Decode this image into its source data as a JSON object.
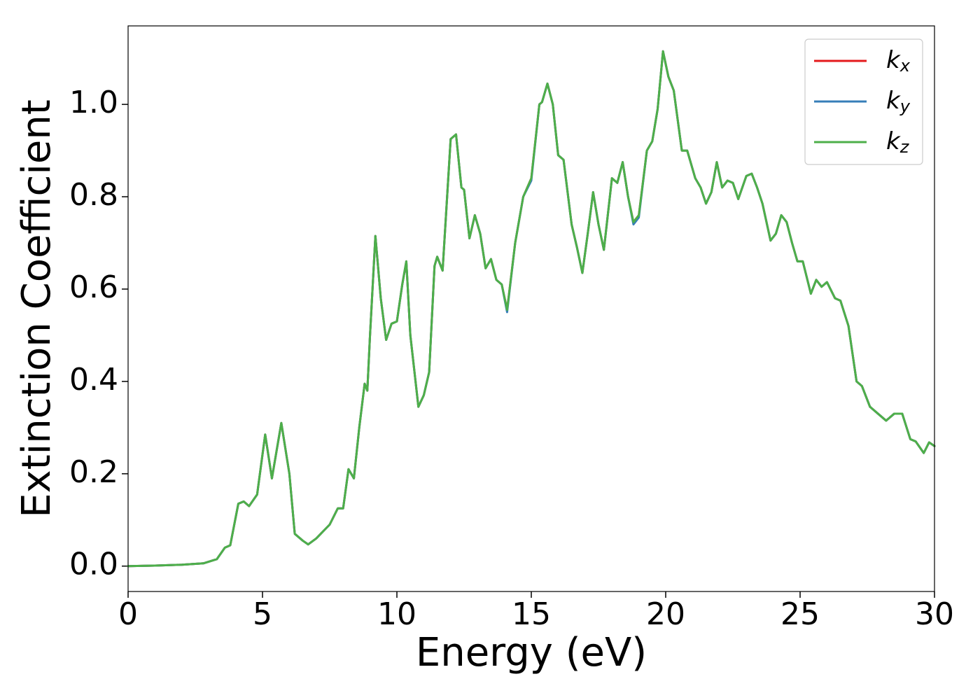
{
  "chart_data": {
    "type": "line",
    "xlabel": "Energy (eV)",
    "ylabel": "Extinction Coefficient",
    "x": [
      0,
      1,
      2,
      2.8,
      3.3,
      3.6,
      3.8,
      4.1,
      4.3,
      4.5,
      4.8,
      5.1,
      5.35,
      5.7,
      6.0,
      6.2,
      6.5,
      6.7,
      7.0,
      7.5,
      7.8,
      8.0,
      8.2,
      8.4,
      8.6,
      8.8,
      8.9,
      9.0,
      9.2,
      9.4,
      9.6,
      9.8,
      10.0,
      10.2,
      10.35,
      10.5,
      10.8,
      11.0,
      11.2,
      11.4,
      11.5,
      11.7,
      12.0,
      12.2,
      12.4,
      12.5,
      12.7,
      12.9,
      13.1,
      13.3,
      13.5,
      13.7,
      13.9,
      14.1,
      14.4,
      14.7,
      15.0,
      15.3,
      15.4,
      15.6,
      15.8,
      16.0,
      16.2,
      16.5,
      16.7,
      16.9,
      17.1,
      17.3,
      17.5,
      17.7,
      18.0,
      18.2,
      18.4,
      18.6,
      18.8,
      19.0,
      19.3,
      19.5,
      19.7,
      19.9,
      20.1,
      20.3,
      20.6,
      20.8,
      21.1,
      21.3,
      21.5,
      21.7,
      21.9,
      22.1,
      22.3,
      22.5,
      22.7,
      23.0,
      23.2,
      23.4,
      23.6,
      23.9,
      24.1,
      24.3,
      24.5,
      24.7,
      24.9,
      25.1,
      25.4,
      25.6,
      25.8,
      26.0,
      26.3,
      26.5,
      26.8,
      27.1,
      27.3,
      27.6,
      27.9,
      28.2,
      28.5,
      28.8,
      29.1,
      29.3,
      29.6,
      29.8,
      30.0
    ],
    "series": [
      {
        "name": "kx",
        "color": "#e41a1c",
        "values": [
          0,
          0.001,
          0.003,
          0.006,
          0.015,
          0.04,
          0.045,
          0.135,
          0.14,
          0.13,
          0.155,
          0.285,
          0.19,
          0.31,
          0.2,
          0.07,
          0.055,
          0.047,
          0.06,
          0.09,
          0.125,
          0.125,
          0.21,
          0.19,
          0.3,
          0.395,
          0.38,
          0.5,
          0.715,
          0.58,
          0.49,
          0.525,
          0.53,
          0.61,
          0.66,
          0.5,
          0.345,
          0.37,
          0.42,
          0.65,
          0.67,
          0.64,
          0.925,
          0.935,
          0.82,
          0.815,
          0.71,
          0.76,
          0.72,
          0.645,
          0.665,
          0.62,
          0.61,
          0.555,
          0.7,
          0.8,
          0.84,
          1.0,
          1.005,
          1.045,
          1.0,
          0.89,
          0.88,
          0.74,
          0.69,
          0.635,
          0.72,
          0.81,
          0.74,
          0.685,
          0.84,
          0.83,
          0.875,
          0.8,
          0.745,
          0.76,
          0.9,
          0.92,
          0.99,
          1.115,
          1.06,
          1.03,
          0.9,
          0.9,
          0.84,
          0.82,
          0.785,
          0.81,
          0.875,
          0.82,
          0.835,
          0.83,
          0.795,
          0.845,
          0.85,
          0.82,
          0.785,
          0.705,
          0.72,
          0.76,
          0.745,
          0.7,
          0.66,
          0.66,
          0.59,
          0.62,
          0.605,
          0.615,
          0.58,
          0.575,
          0.52,
          0.4,
          0.39,
          0.345,
          0.33,
          0.315,
          0.33,
          0.33,
          0.275,
          0.27,
          0.245,
          0.268,
          0.26
        ]
      },
      {
        "name": "ky",
        "color": "#377eb8",
        "values": [
          0,
          0.001,
          0.003,
          0.006,
          0.015,
          0.04,
          0.045,
          0.135,
          0.14,
          0.13,
          0.155,
          0.285,
          0.19,
          0.31,
          0.2,
          0.07,
          0.055,
          0.047,
          0.06,
          0.09,
          0.125,
          0.125,
          0.21,
          0.19,
          0.3,
          0.395,
          0.38,
          0.5,
          0.715,
          0.58,
          0.49,
          0.525,
          0.53,
          0.61,
          0.66,
          0.5,
          0.345,
          0.37,
          0.42,
          0.65,
          0.67,
          0.64,
          0.925,
          0.935,
          0.82,
          0.815,
          0.71,
          0.76,
          0.72,
          0.645,
          0.665,
          0.62,
          0.61,
          0.55,
          0.7,
          0.8,
          0.835,
          1.0,
          1.005,
          1.045,
          1.0,
          0.89,
          0.88,
          0.74,
          0.69,
          0.635,
          0.72,
          0.81,
          0.74,
          0.685,
          0.84,
          0.83,
          0.875,
          0.8,
          0.74,
          0.755,
          0.9,
          0.92,
          0.99,
          1.115,
          1.06,
          1.03,
          0.9,
          0.9,
          0.84,
          0.82,
          0.785,
          0.81,
          0.875,
          0.82,
          0.835,
          0.83,
          0.795,
          0.845,
          0.85,
          0.82,
          0.785,
          0.705,
          0.72,
          0.76,
          0.745,
          0.7,
          0.66,
          0.66,
          0.59,
          0.62,
          0.605,
          0.615,
          0.58,
          0.575,
          0.52,
          0.4,
          0.39,
          0.345,
          0.33,
          0.315,
          0.33,
          0.33,
          0.275,
          0.27,
          0.245,
          0.268,
          0.26
        ]
      },
      {
        "name": "kz",
        "color": "#4daf4a",
        "values": [
          0,
          0.001,
          0.003,
          0.006,
          0.015,
          0.04,
          0.045,
          0.135,
          0.14,
          0.13,
          0.155,
          0.285,
          0.19,
          0.31,
          0.2,
          0.07,
          0.055,
          0.047,
          0.06,
          0.09,
          0.125,
          0.125,
          0.21,
          0.19,
          0.3,
          0.395,
          0.38,
          0.5,
          0.715,
          0.58,
          0.49,
          0.525,
          0.53,
          0.61,
          0.66,
          0.5,
          0.345,
          0.37,
          0.42,
          0.65,
          0.67,
          0.64,
          0.925,
          0.935,
          0.82,
          0.815,
          0.71,
          0.76,
          0.72,
          0.645,
          0.665,
          0.62,
          0.61,
          0.555,
          0.7,
          0.8,
          0.84,
          1.0,
          1.005,
          1.045,
          1.0,
          0.89,
          0.88,
          0.74,
          0.69,
          0.635,
          0.72,
          0.81,
          0.74,
          0.685,
          0.84,
          0.83,
          0.875,
          0.8,
          0.745,
          0.76,
          0.9,
          0.92,
          0.99,
          1.115,
          1.06,
          1.03,
          0.9,
          0.9,
          0.84,
          0.82,
          0.785,
          0.81,
          0.875,
          0.82,
          0.835,
          0.83,
          0.795,
          0.845,
          0.85,
          0.82,
          0.785,
          0.705,
          0.72,
          0.76,
          0.745,
          0.7,
          0.66,
          0.66,
          0.59,
          0.62,
          0.605,
          0.615,
          0.58,
          0.575,
          0.52,
          0.4,
          0.39,
          0.345,
          0.33,
          0.315,
          0.33,
          0.33,
          0.275,
          0.27,
          0.245,
          0.268,
          0.26
        ]
      }
    ],
    "xlim": [
      0,
      30
    ],
    "xticks": [
      0,
      5,
      10,
      15,
      20,
      25,
      30
    ],
    "ylim": [
      -0.055,
      1.17
    ],
    "yticks": [
      {
        "value": 0,
        "label": "0.0"
      },
      {
        "value": 0.2,
        "label": "0.2"
      },
      {
        "value": 0.4,
        "label": "0.4"
      },
      {
        "value": 0.6,
        "label": "0.6"
      },
      {
        "value": 0.8,
        "label": "0.8"
      },
      {
        "value": 1,
        "label": "1.0"
      }
    ],
    "legend": "upper right",
    "grid": false
  }
}
